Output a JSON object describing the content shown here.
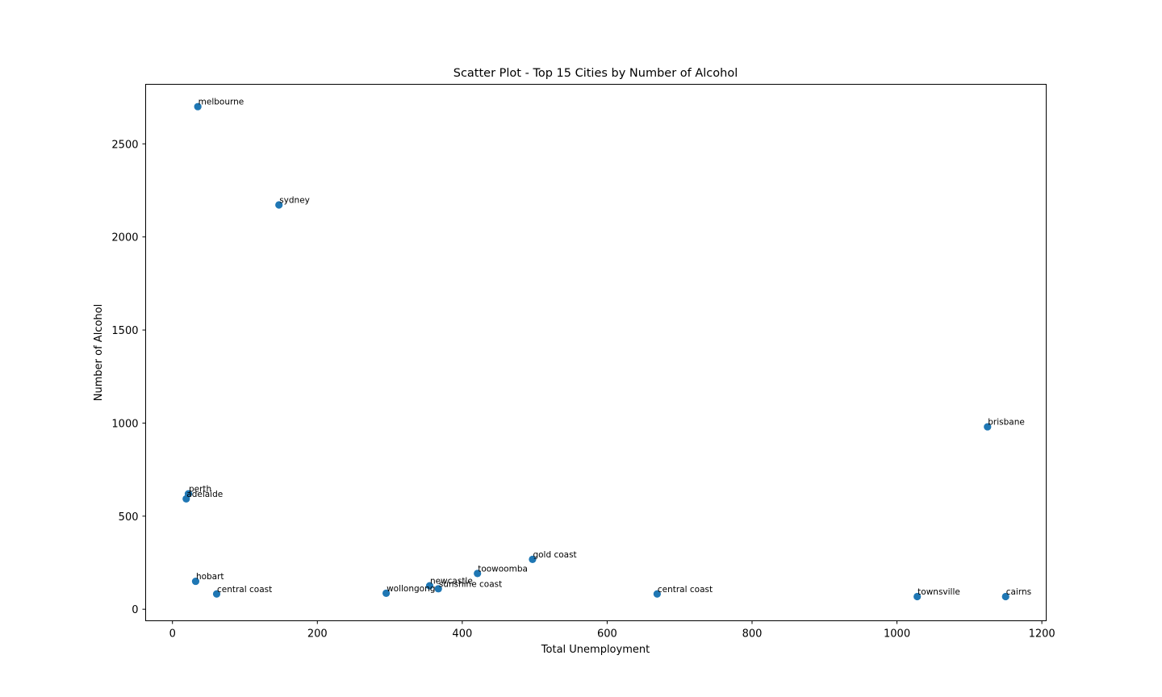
{
  "chart_data": {
    "type": "scatter",
    "title": "Scatter Plot - Top 15 Cities by Number of Alcohol",
    "xlabel": "Total Unemployment",
    "ylabel": "Number of Alcohol",
    "xlim": [
      -37,
      1206
    ],
    "ylim": [
      -62,
      2820
    ],
    "xticks": [
      0,
      200,
      400,
      600,
      800,
      1000,
      1200
    ],
    "yticks": [
      0,
      500,
      1000,
      1500,
      2000,
      2500
    ],
    "grid": false,
    "marker_color": "#1f77b4",
    "points": [
      {
        "label": "melbourne",
        "x": 35,
        "y": 2700
      },
      {
        "label": "sydney",
        "x": 147,
        "y": 2172
      },
      {
        "label": "brisbane",
        "x": 1125,
        "y": 980
      },
      {
        "label": "perth",
        "x": 22,
        "y": 620
      },
      {
        "label": "adelaide",
        "x": 19,
        "y": 593
      },
      {
        "label": "gold coast",
        "x": 497,
        "y": 268
      },
      {
        "label": "toowoomba",
        "x": 421,
        "y": 192
      },
      {
        "label": "hobart",
        "x": 32,
        "y": 150
      },
      {
        "label": "newcastle",
        "x": 355,
        "y": 126
      },
      {
        "label": "sunshine coast",
        "x": 367,
        "y": 110
      },
      {
        "label": "wollongong",
        "x": 295,
        "y": 86
      },
      {
        "label": "central coast",
        "x": 61,
        "y": 82
      },
      {
        "label": "central coast",
        "x": 669,
        "y": 82
      },
      {
        "label": "townsville",
        "x": 1028,
        "y": 68
      },
      {
        "label": "cairns",
        "x": 1150,
        "y": 68
      }
    ]
  }
}
